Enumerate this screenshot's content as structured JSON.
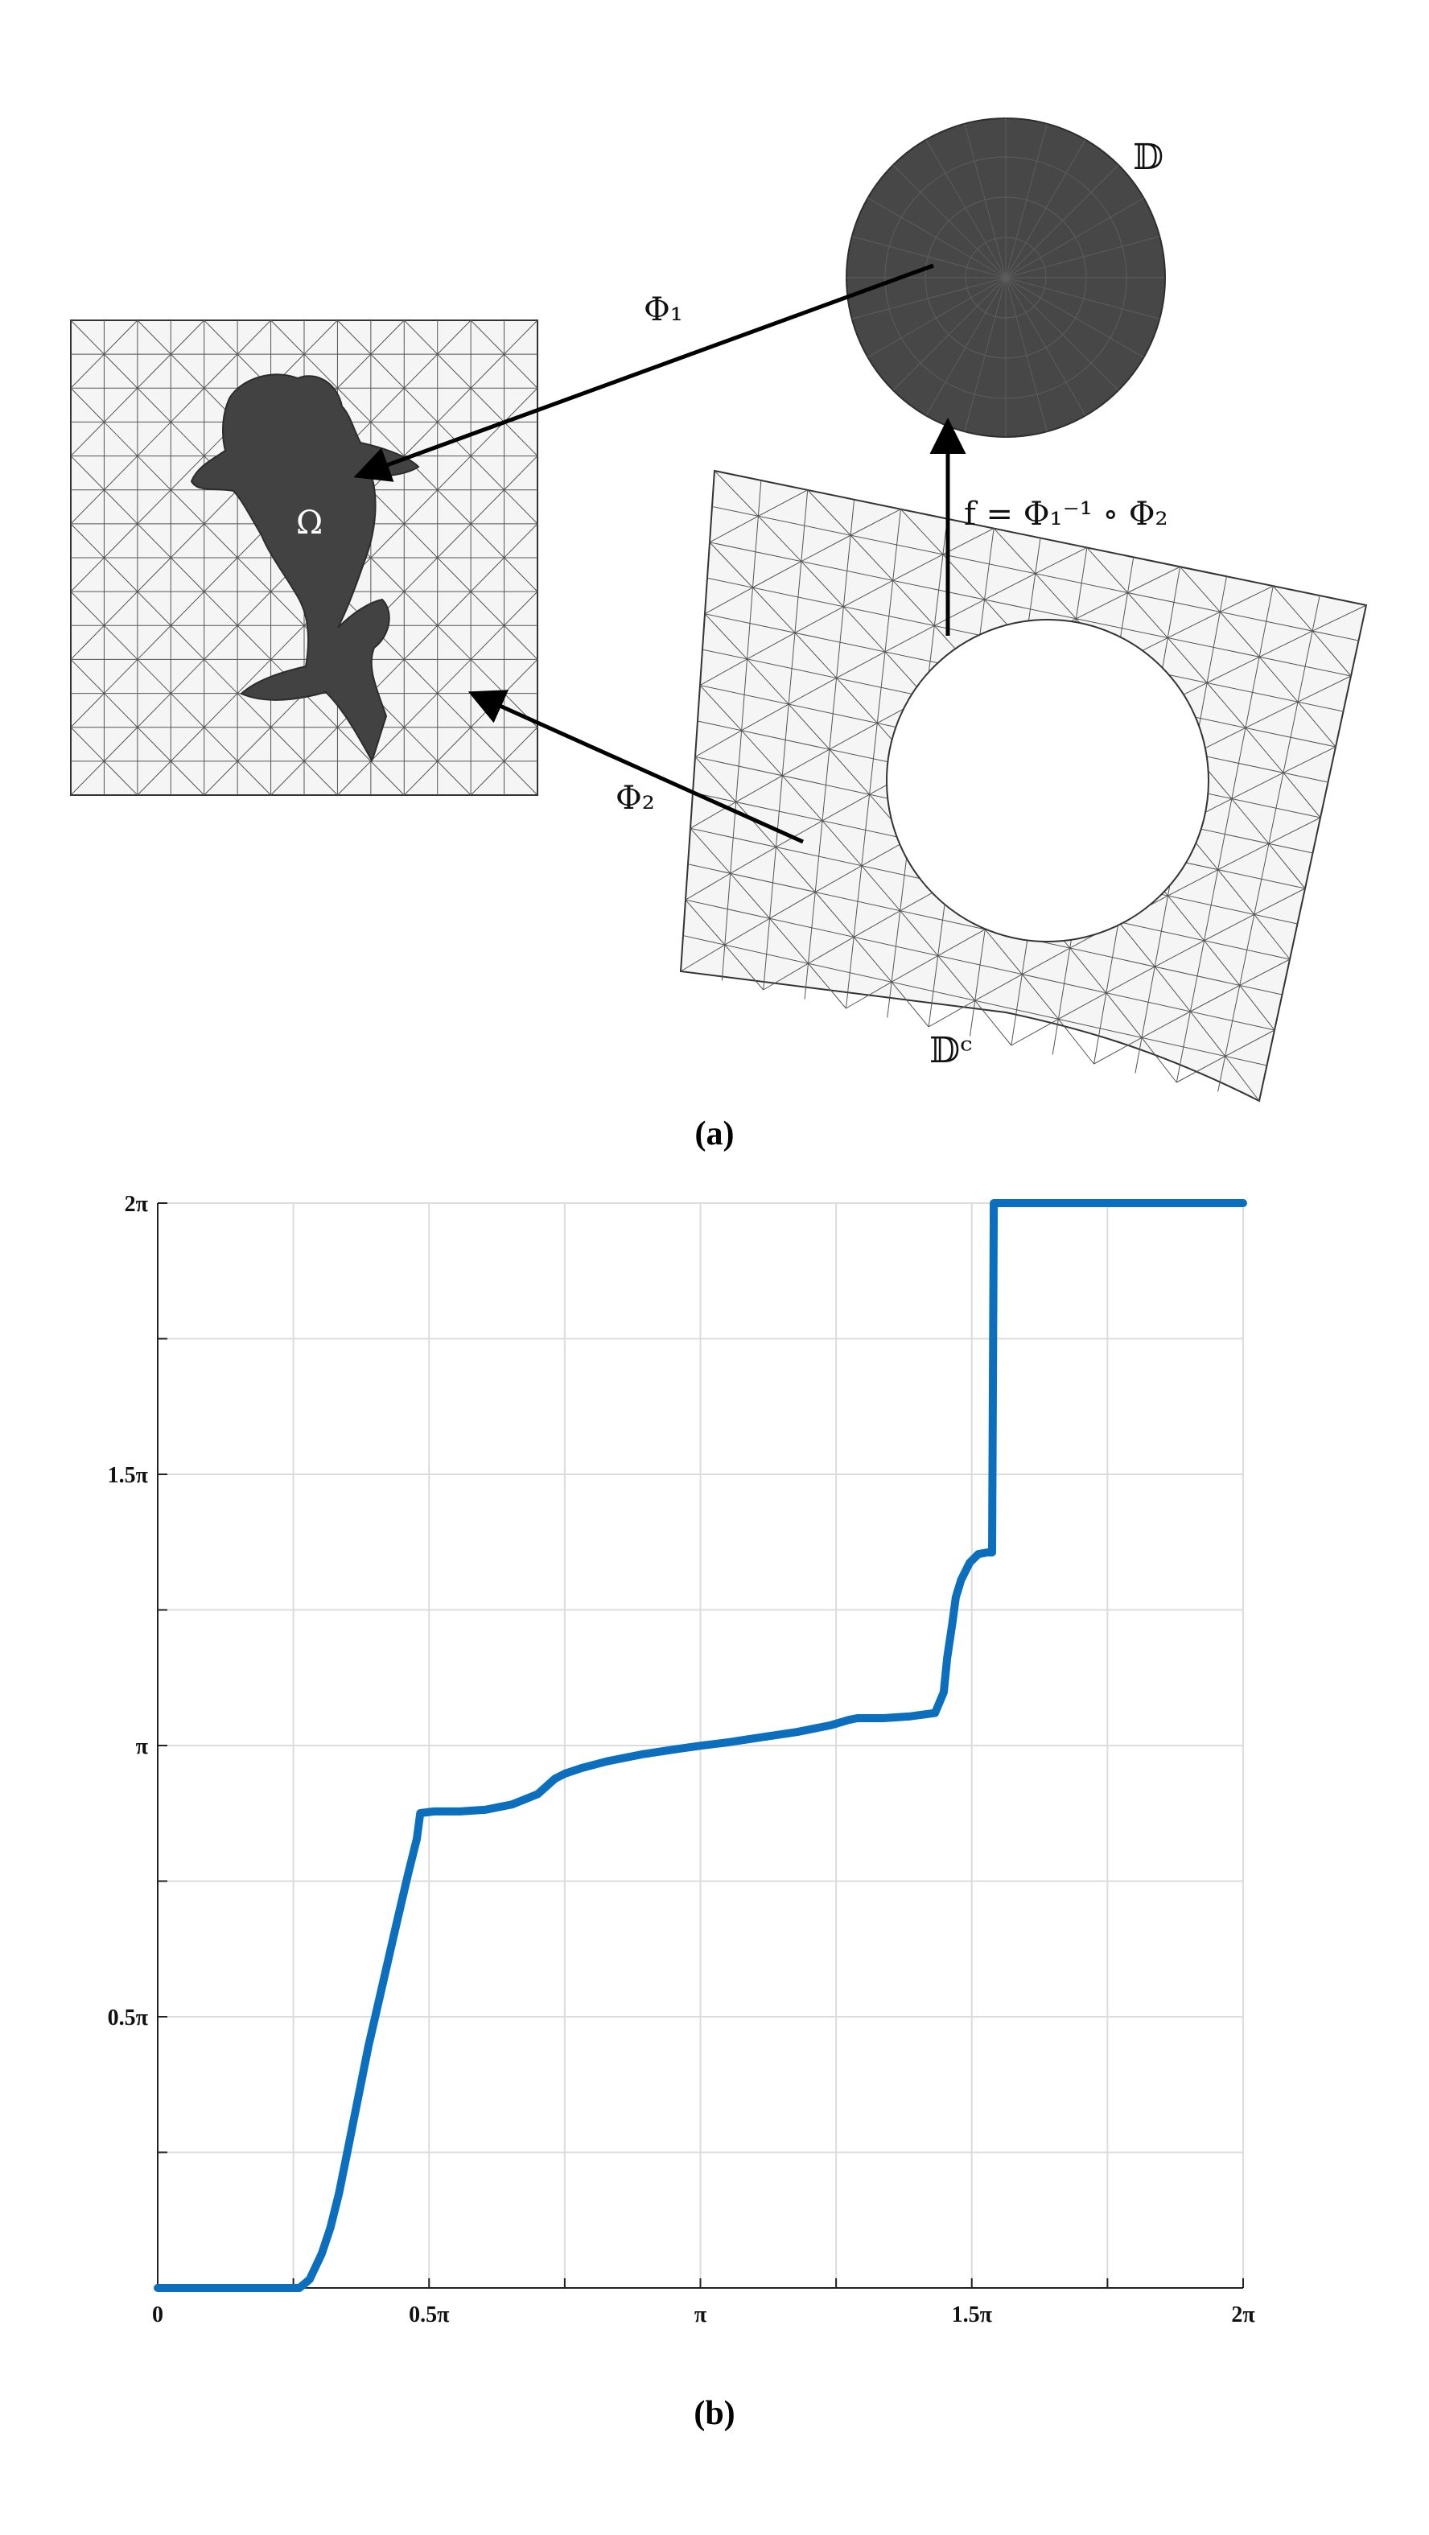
{
  "panel_a": {
    "caption": "(a)",
    "labels": {
      "omega": "Ω",
      "disk": "𝔻",
      "disk_complement": "𝔻ᶜ",
      "phi1": "Φ₁",
      "phi2": "Φ₂",
      "composition": "f = Φ₁⁻¹ ∘ Φ₂"
    },
    "colors": {
      "shape_fill": "#424242",
      "mesh_stroke": "#3a3a3a",
      "mesh_bg": "#f5f5f5"
    }
  },
  "panel_b": {
    "caption": "(b)"
  },
  "chart_data": {
    "type": "line",
    "title": "",
    "xlabel": "",
    "ylabel": "",
    "xlim": [
      0,
      6.2832
    ],
    "ylim": [
      0,
      6.2832
    ],
    "xticks": [
      {
        "value": 0,
        "label": "0"
      },
      {
        "value": 1.5708,
        "label": "0.5π"
      },
      {
        "value": 3.1416,
        "label": "π"
      },
      {
        "value": 4.7124,
        "label": "1.5π"
      },
      {
        "value": 6.2832,
        "label": "2π"
      }
    ],
    "yticks": [
      {
        "value": 1.5708,
        "label": "0.5π"
      },
      {
        "value": 3.1416,
        "label": "π"
      },
      {
        "value": 4.7124,
        "label": "1.5π"
      },
      {
        "value": 6.2832,
        "label": "2π"
      }
    ],
    "grid": true,
    "grid_step": 0.7854,
    "line_color": "#0b6fbd",
    "series": [
      {
        "x": [
          0,
          0.5,
          0.82,
          0.88,
          0.95,
          1.0,
          1.05,
          1.1,
          1.15,
          1.22,
          1.3,
          1.38,
          1.45,
          1.5,
          1.52,
          1.6,
          1.75,
          1.9,
          2.05,
          2.2,
          2.3,
          2.36,
          2.45,
          2.6,
          2.8,
          3.0,
          3.14,
          3.3,
          3.5,
          3.7,
          3.9,
          4.0,
          4.05,
          4.1,
          4.2,
          4.35,
          4.5,
          4.55,
          4.57,
          4.6,
          4.62,
          4.65,
          4.7,
          4.75,
          4.8,
          4.83,
          4.84,
          4.9,
          5.1,
          5.5,
          6.0,
          6.2832
        ],
        "y": [
          0,
          0,
          0,
          0.05,
          0.2,
          0.35,
          0.55,
          0.8,
          1.05,
          1.4,
          1.75,
          2.1,
          2.4,
          2.6,
          2.75,
          2.76,
          2.76,
          2.77,
          2.8,
          2.86,
          2.95,
          2.98,
          3.01,
          3.05,
          3.09,
          3.12,
          3.14,
          3.16,
          3.19,
          3.22,
          3.26,
          3.29,
          3.3,
          3.3,
          3.3,
          3.31,
          3.33,
          3.45,
          3.65,
          3.85,
          4.0,
          4.1,
          4.2,
          4.25,
          4.26,
          4.26,
          6.2832,
          6.2832,
          6.2832,
          6.2832,
          6.2832,
          6.2832
        ]
      }
    ]
  }
}
